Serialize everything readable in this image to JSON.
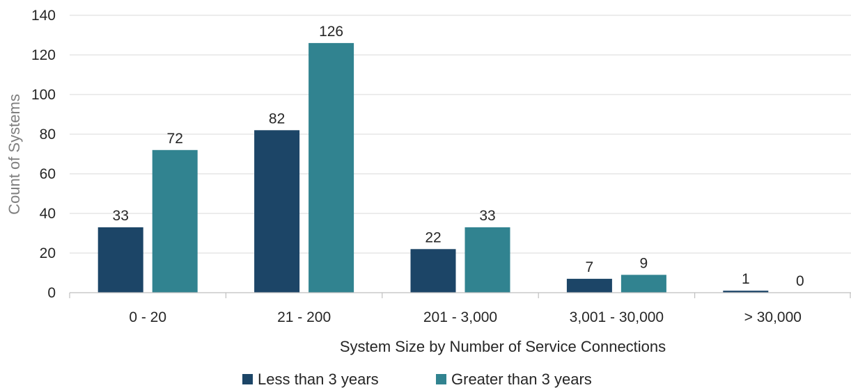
{
  "chart_data": {
    "type": "bar",
    "title": "",
    "xlabel": "System Size by Number of Service Connections",
    "ylabel": "Count of Systems",
    "categories": [
      "0 - 20",
      "21 - 200",
      "201 - 3,000",
      "3,001 - 30,000",
      "> 30,000"
    ],
    "series": [
      {
        "name": "Less than 3 years",
        "color": "#1c4567",
        "values": [
          33,
          82,
          22,
          7,
          1
        ]
      },
      {
        "name": "Greater than 3 years",
        "color": "#318390",
        "values": [
          72,
          126,
          33,
          9,
          0
        ]
      }
    ],
    "ylim": [
      0,
      140
    ],
    "yticks": [
      0,
      20,
      40,
      60,
      80,
      100,
      120,
      140
    ],
    "grid": true,
    "data_labels": true,
    "legend_position": "bottom"
  }
}
